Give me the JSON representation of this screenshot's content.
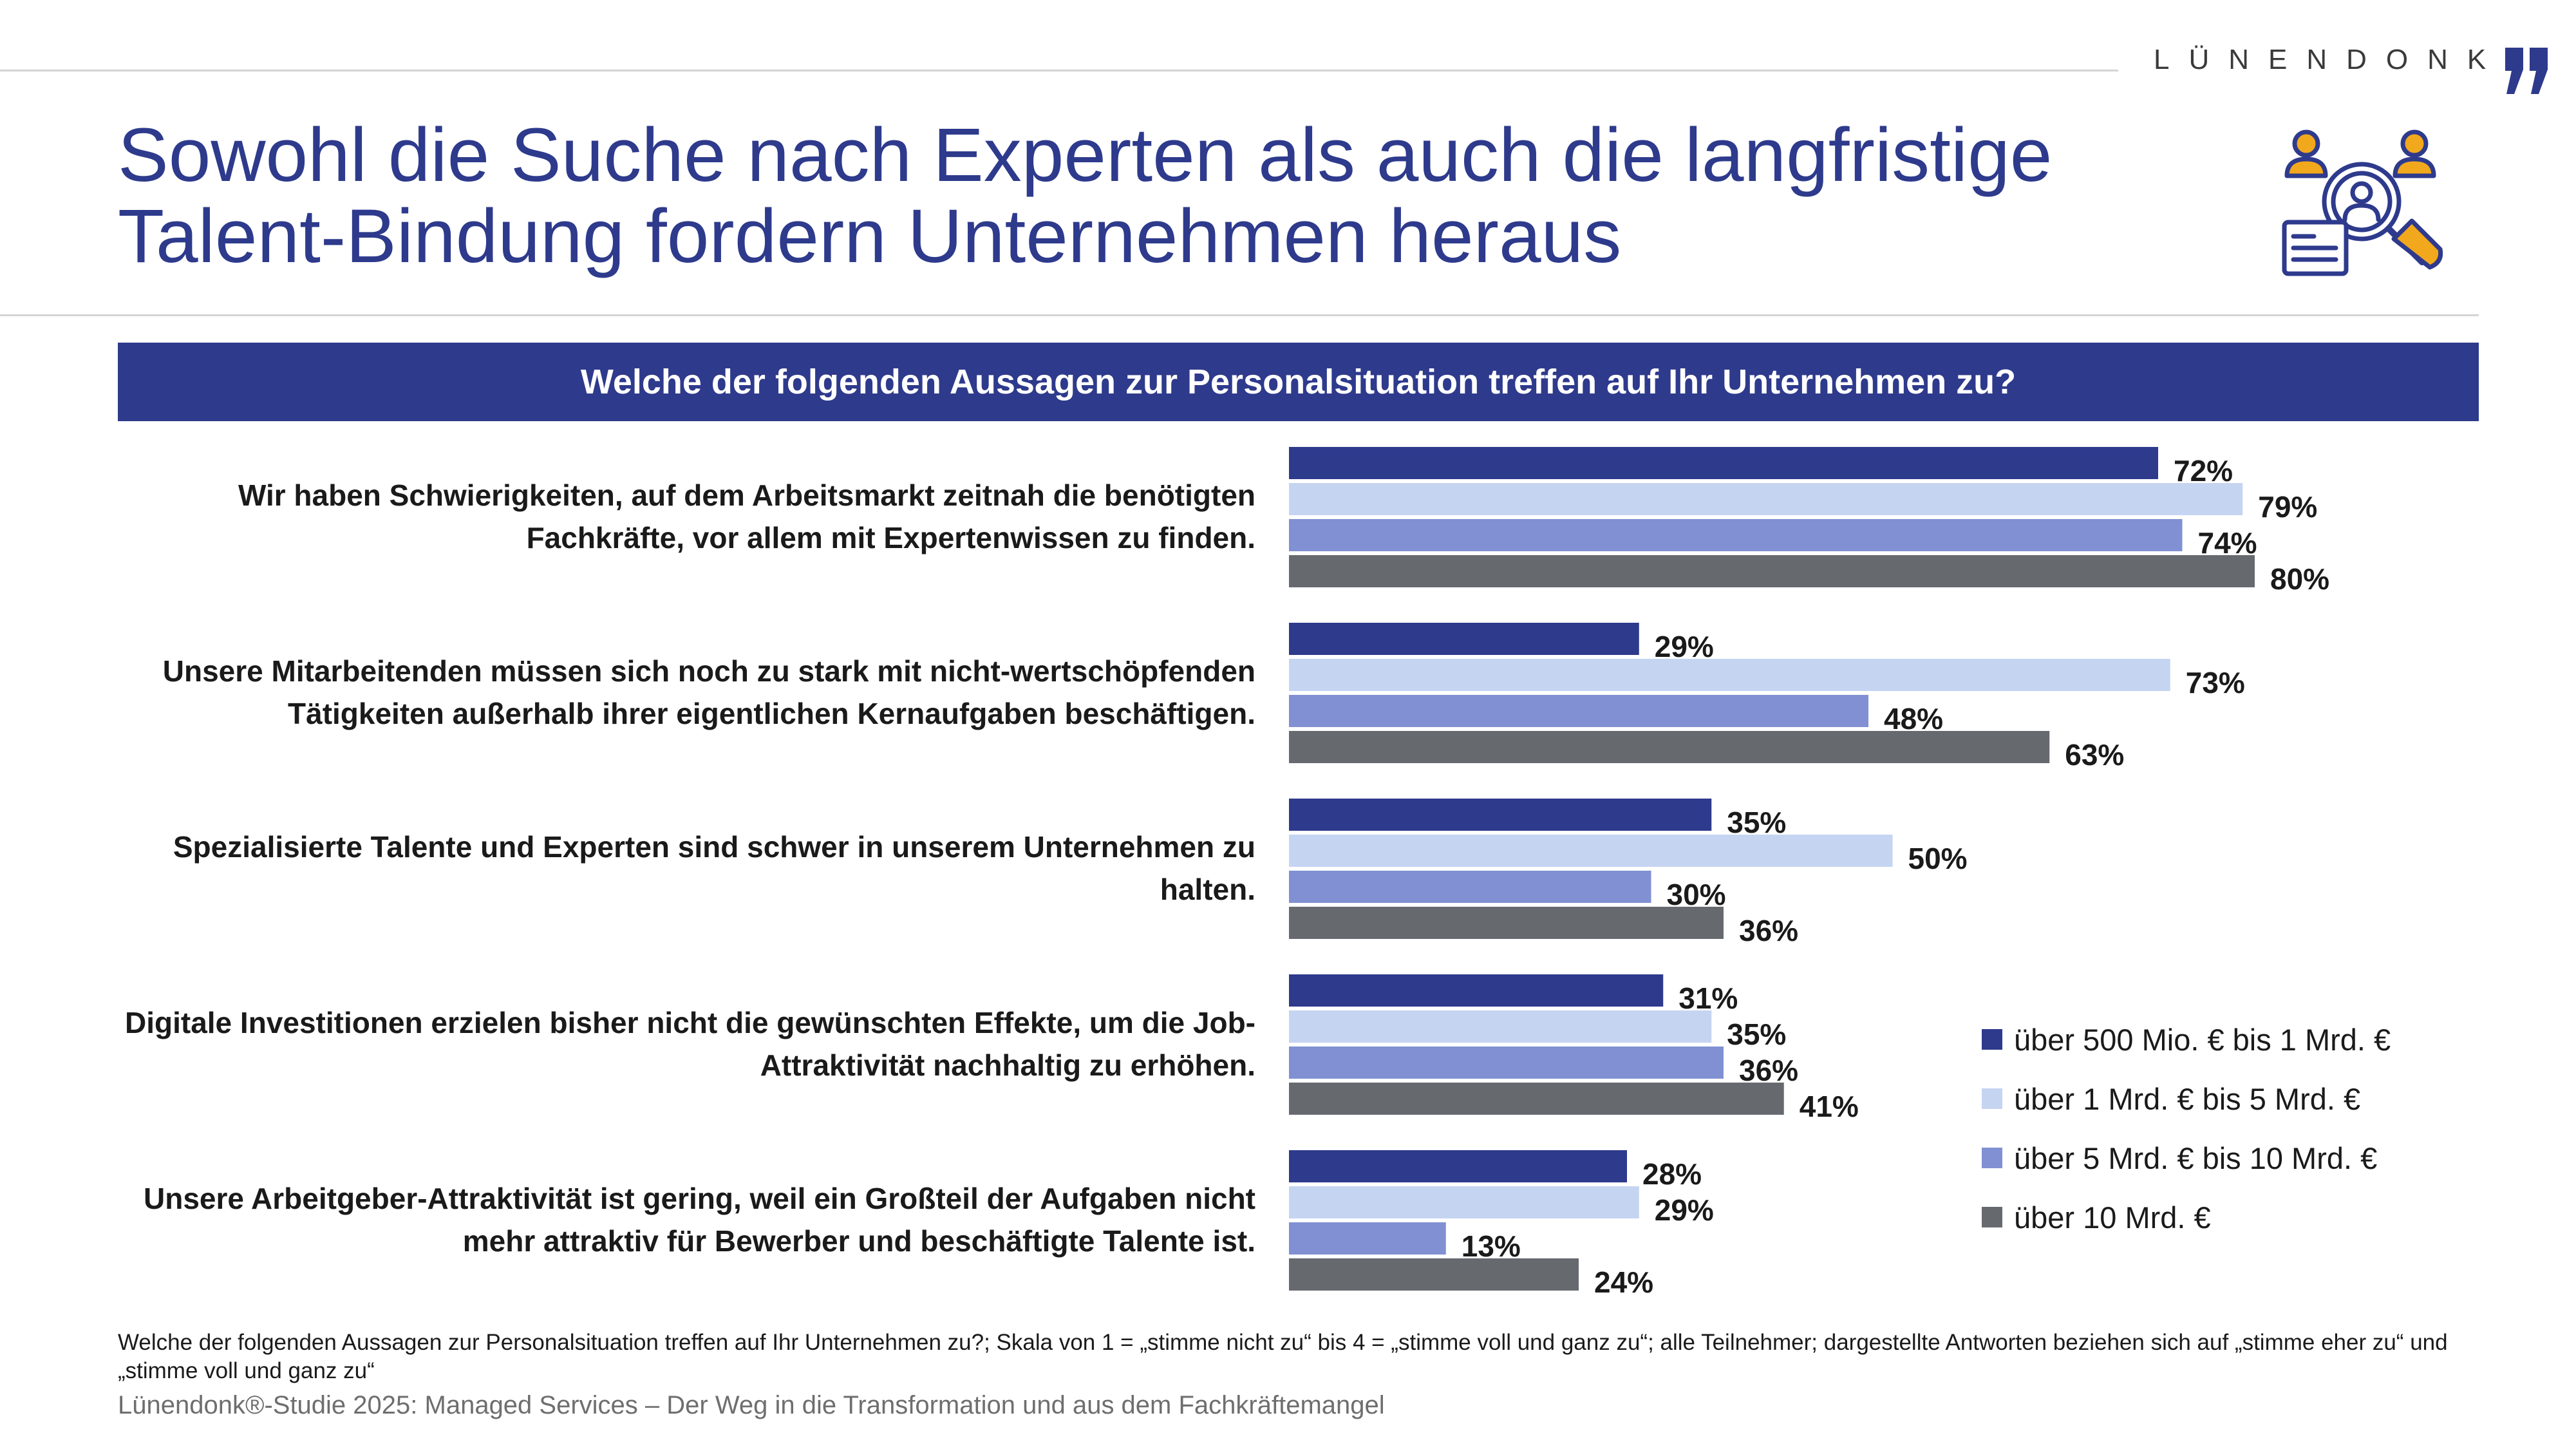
{
  "brand": "LÜNENDONK",
  "title": "Sowohl die Suche nach Experten als auch die langfristige Talent-Bindung fordern Unternehmen heraus",
  "question": "Welche der folgenden Aussagen zur Personalsituation treffen auf Ihr Unternehmen zu?",
  "colors": {
    "navy": "#2e3a8c",
    "light_blue": "#c5d4f1",
    "periwinkle": "#8090d2",
    "gray": "#666a6f",
    "accent_orange": "#f2a81c"
  },
  "icons": {
    "hero": "talent-search-icon",
    "brand_mark": "quote-mark-icon"
  },
  "chart_data": {
    "type": "bar",
    "orientation": "horizontal",
    "value_suffix": "%",
    "xlim": [
      0,
      100
    ],
    "grid": false,
    "legend_position": "right",
    "categories": [
      "Wir haben Schwierigkeiten, auf dem Arbeitsmarkt zeitnah die benötigten Fachkräfte, vor allem mit Expertenwissen zu finden.",
      "Unsere Mitarbeitenden müssen sich noch zu stark mit nicht-wertschöpfenden Tätigkeiten außerhalb ihrer eigentlichen Kernaufgaben beschäftigen.",
      "Spezialisierte Talente und Experten sind schwer in unserem Unternehmen zu halten.",
      "Digitale Investitionen erzielen bisher nicht die gewünschten Effekte, um die Job-Attraktivität nachhaltig zu erhöhen.",
      "Unsere Arbeitgeber-Attraktivität ist gering, weil ein Großteil der Aufgaben nicht mehr attraktiv für Bewerber und beschäftigte Talente ist."
    ],
    "series": [
      {
        "name": "über 500 Mio. € bis 1 Mrd. €",
        "color": "#2e3a8c",
        "values": [
          72,
          29,
          35,
          31,
          28
        ]
      },
      {
        "name": "über 1 Mrd. € bis 5 Mrd. €",
        "color": "#c5d4f1",
        "values": [
          79,
          73,
          50,
          35,
          29
        ]
      },
      {
        "name": "über 5 Mrd. € bis 10 Mrd. €",
        "color": "#8090d2",
        "values": [
          74,
          48,
          30,
          36,
          13
        ]
      },
      {
        "name": "über 10 Mrd. €",
        "color": "#666a6f",
        "values": [
          80,
          63,
          36,
          41,
          24
        ]
      }
    ]
  },
  "footnote": "Welche der folgenden Aussagen zur Personalsituation treffen auf Ihr Unternehmen zu?; Skala von 1 = „stimme nicht zu“ bis 4 = „stimme voll und ganz zu“; alle Teilnehmer; dargestellte Antworten beziehen sich auf „stimme eher zu“ und „stimme voll und ganz zu“",
  "source": "Lünendonk®-Studie 2025: Managed Services – Der Weg in die Transformation und aus dem Fachkräftemangel"
}
